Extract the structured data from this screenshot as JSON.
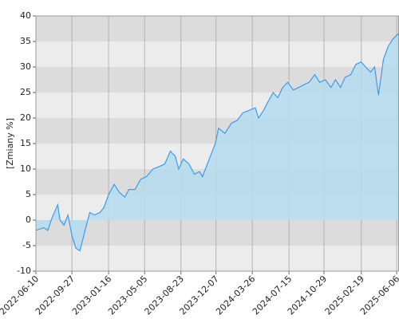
{
  "chart_data": {
    "type": "area",
    "ylabel": "[Zmiany %]",
    "x": [
      "2022-06-10",
      "2022-07-04",
      "2022-07-16",
      "2022-07-29",
      "2022-08-15",
      "2022-08-22",
      "2022-09-03",
      "2022-09-15",
      "2022-09-27",
      "2022-10-09",
      "2022-10-21",
      "2022-10-29",
      "2022-11-10",
      "2022-11-20",
      "2022-12-04",
      "2022-12-21",
      "2023-01-02",
      "2023-01-16",
      "2023-02-02",
      "2023-02-17",
      "2023-03-06",
      "2023-03-18",
      "2023-04-06",
      "2023-04-23",
      "2023-05-10",
      "2023-05-30",
      "2023-06-18",
      "2023-07-05",
      "2023-07-22",
      "2023-08-06",
      "2023-08-16",
      "2023-08-30",
      "2023-09-16",
      "2023-10-03",
      "2023-10-18",
      "2023-10-27",
      "2023-11-11",
      "2023-11-23",
      "2023-12-05",
      "2023-12-15",
      "2024-01-03",
      "2024-01-23",
      "2024-02-09",
      "2024-02-26",
      "2024-03-16",
      "2024-04-04",
      "2024-04-14",
      "2024-04-29",
      "2024-05-11",
      "2024-05-28",
      "2024-06-11",
      "2024-06-26",
      "2024-07-11",
      "2024-07-28",
      "2024-08-14",
      "2024-08-28",
      "2024-09-14",
      "2024-10-01",
      "2024-10-16",
      "2024-11-02",
      "2024-11-19",
      "2024-12-03",
      "2024-12-18",
      "2025-01-01",
      "2025-01-18",
      "2025-02-02",
      "2025-02-18",
      "2025-03-04",
      "2025-03-19",
      "2025-03-31",
      "2025-04-12",
      "2025-04-27",
      "2025-05-11",
      "2025-05-26",
      "2025-06-11"
    ],
    "values": [
      -2,
      -1.5,
      -2,
      0.5,
      3,
      0,
      -1,
      1,
      -3,
      -5.5,
      -6,
      -4,
      -1,
      1.5,
      1,
      1.5,
      2.5,
      5,
      7,
      5.5,
      4.5,
      6,
      6,
      8,
      8.5,
      10,
      10.5,
      11,
      13.5,
      12.5,
      10,
      12,
      11,
      9,
      9.5,
      8.5,
      11,
      13,
      15,
      18,
      17,
      19,
      19.5,
      21,
      21.5,
      22,
      20,
      21.5,
      23,
      25,
      24,
      26,
      27,
      25.5,
      26,
      26.5,
      27,
      28.5,
      27,
      27.5,
      26,
      27.5,
      26,
      28,
      28.5,
      30.5,
      31,
      30,
      29,
      30,
      24.5,
      31.5,
      34,
      35.5,
      36.5
    ],
    "xlim": [
      "2022-06-10",
      "2025-06-13"
    ],
    "xticks": [
      "2022-06-10",
      "2022-09-27",
      "2023-01-16",
      "2023-05-05",
      "2023-08-23",
      "2023-12-07",
      "2024-03-26",
      "2024-07-15",
      "2024-10-29",
      "2025-02-19",
      "2025-06-06"
    ],
    "ylim": [
      -10,
      40
    ],
    "yticks": [
      -10,
      -5,
      0,
      5,
      10,
      15,
      20,
      25,
      30,
      35,
      40
    ],
    "grid": true,
    "color": "#3d9be9",
    "fill_color": "#b5dcee"
  }
}
